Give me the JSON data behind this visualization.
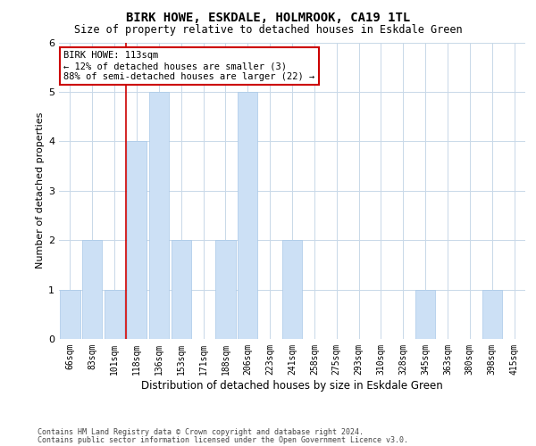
{
  "title": "BIRK HOWE, ESKDALE, HOLMROOK, CA19 1TL",
  "subtitle": "Size of property relative to detached houses in Eskdale Green",
  "xlabel": "Distribution of detached houses by size in Eskdale Green",
  "ylabel": "Number of detached properties",
  "categories": [
    "66sqm",
    "83sqm",
    "101sqm",
    "118sqm",
    "136sqm",
    "153sqm",
    "171sqm",
    "188sqm",
    "206sqm",
    "223sqm",
    "241sqm",
    "258sqm",
    "275sqm",
    "293sqm",
    "310sqm",
    "328sqm",
    "345sqm",
    "363sqm",
    "380sqm",
    "398sqm",
    "415sqm"
  ],
  "values": [
    1,
    2,
    1,
    4,
    5,
    2,
    0,
    2,
    5,
    0,
    2,
    0,
    0,
    0,
    0,
    0,
    1,
    0,
    0,
    1,
    0
  ],
  "bar_color": "#cce0f5",
  "bar_edge_color": "#a8c8e8",
  "vline_x_index": 2.5,
  "vline_color": "#cc0000",
  "annotation_text": "BIRK HOWE: 113sqm\n← 12% of detached houses are smaller (3)\n88% of semi-detached houses are larger (22) →",
  "annotation_box_color": "#cc0000",
  "ylim": [
    0,
    6
  ],
  "yticks": [
    0,
    1,
    2,
    3,
    4,
    5,
    6
  ],
  "footer_line1": "Contains HM Land Registry data © Crown copyright and database right 2024.",
  "footer_line2": "Contains public sector information licensed under the Open Government Licence v3.0.",
  "background_color": "#ffffff",
  "grid_color": "#c8d8e8",
  "title_fontsize": 10,
  "subtitle_fontsize": 8.5,
  "ylabel_fontsize": 8,
  "xlabel_fontsize": 8.5,
  "tick_fontsize": 7,
  "annot_fontsize": 7.5,
  "footer_fontsize": 6
}
